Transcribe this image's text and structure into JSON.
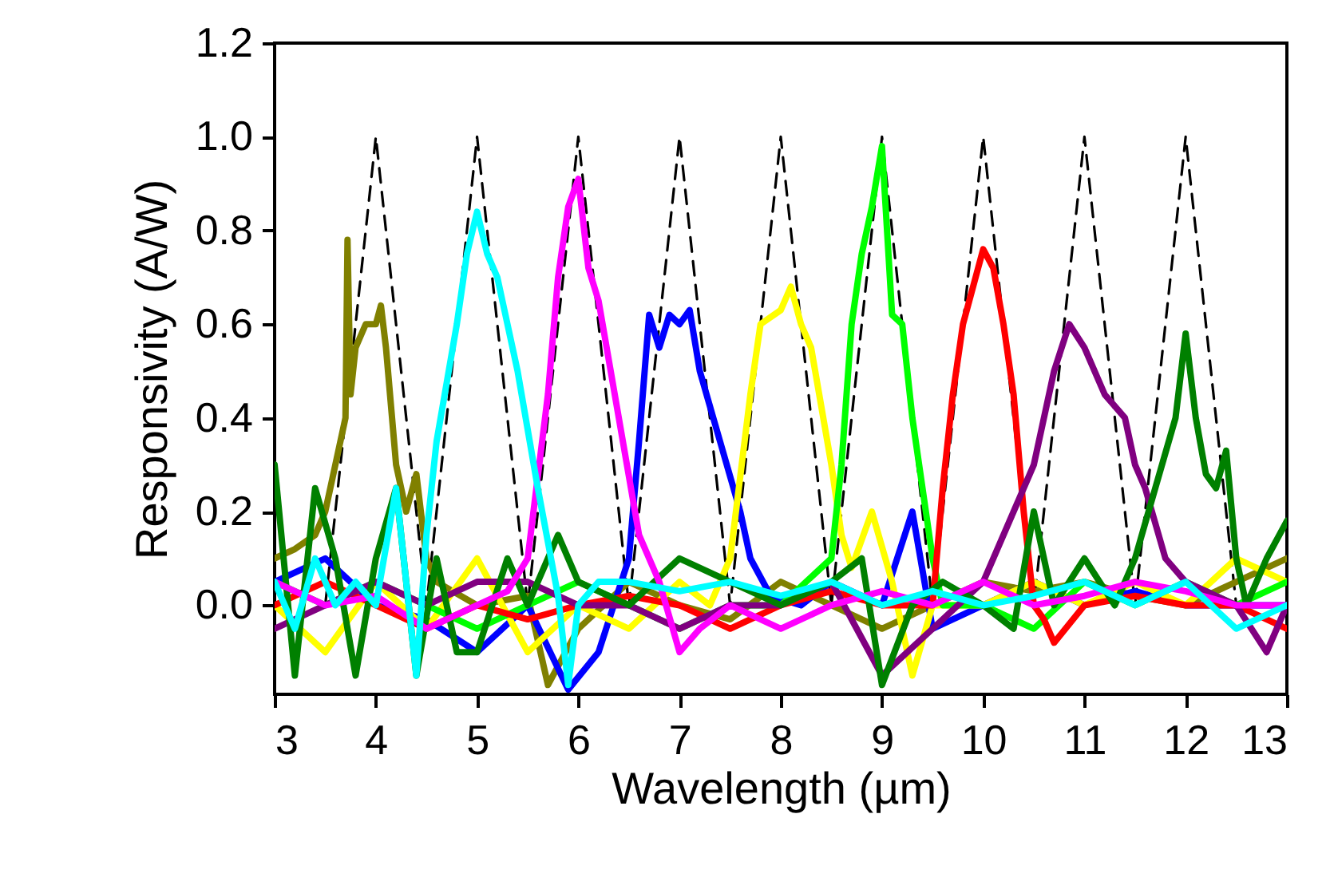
{
  "chart_data": {
    "type": "line",
    "xlabel": "Wavelength (µm)",
    "ylabel": "Responsivity (A/W)",
    "xlim": [
      3,
      13
    ],
    "xticks": [
      3,
      4,
      5,
      6,
      7,
      8,
      9,
      10,
      11,
      12,
      13
    ],
    "ylim": [
      -0.19,
      1.2
    ],
    "yticks": [
      {
        "value": 0,
        "label": "0.0"
      },
      {
        "value": 0.2,
        "label": "0.2"
      },
      {
        "value": 0.4,
        "label": "0.4"
      },
      {
        "value": 0.6,
        "label": "0.6"
      },
      {
        "value": 0.8,
        "label": "0.8"
      },
      {
        "value": 1,
        "label": "1.0"
      },
      {
        "value": 1.2,
        "label": "1.2"
      }
    ],
    "series": [
      {
        "color": "#000000",
        "line_style": "dashed",
        "x": [
          3.5,
          4,
          4.5,
          5,
          5.5,
          6,
          6.5,
          7,
          7.5,
          8,
          8.5,
          9,
          9.5,
          10,
          10.5,
          11,
          11.5,
          12,
          12.5
        ],
        "values": [
          0,
          1,
          0,
          1,
          0,
          1,
          0,
          1,
          0,
          1,
          0,
          1,
          0,
          1,
          0,
          1,
          0,
          1,
          0
        ]
      },
      {
        "color": "#808000",
        "x": [
          3,
          3.2,
          3.4,
          3.5,
          3.6,
          3.7,
          3.72,
          3.75,
          3.8,
          3.9,
          4.0,
          4.05,
          4.1,
          4.2,
          4.3,
          4.4,
          4.5,
          4.6,
          5,
          5.5,
          5.7,
          6,
          6.5,
          7,
          7.5,
          8,
          8.5,
          9,
          9.5,
          10,
          10.5,
          11,
          11.5,
          12,
          12.5,
          13
        ],
        "values": [
          0.1,
          0.12,
          0.15,
          0.2,
          0.3,
          0.4,
          0.78,
          0.45,
          0.55,
          0.6,
          0.6,
          0.64,
          0.55,
          0.3,
          0.2,
          0.28,
          0.1,
          0.05,
          0.0,
          0.02,
          -0.17,
          -0.05,
          0.05,
          0.0,
          -0.03,
          0.05,
          0.0,
          -0.05,
          0.0,
          0.05,
          0.03,
          0.05,
          0.02,
          0.0,
          0.05,
          0.1
        ]
      },
      {
        "color": "#0000ff",
        "x": [
          3,
          3.5,
          4,
          4.5,
          5,
          5.5,
          5.9,
          6.2,
          6.5,
          6.6,
          6.7,
          6.8,
          6.9,
          7.0,
          7.1,
          7.2,
          7.4,
          7.6,
          7.7,
          7.9,
          8.2,
          8.5,
          9,
          9.3,
          9.5,
          10,
          10.5,
          11,
          11.5,
          12,
          12.5,
          13
        ],
        "values": [
          0.05,
          0.1,
          0.0,
          -0.03,
          -0.1,
          0.0,
          -0.18,
          -0.1,
          0.1,
          0.35,
          0.62,
          0.55,
          0.62,
          0.6,
          0.63,
          0.5,
          0.35,
          0.2,
          0.1,
          0.02,
          0.0,
          0.05,
          0.0,
          0.2,
          -0.05,
          0.0,
          0.05,
          0.0,
          0.03,
          0.0,
          0.0,
          0.0
        ]
      },
      {
        "color": "#ffff00",
        "x": [
          3,
          3.5,
          4,
          4.5,
          5,
          5.5,
          6,
          6.5,
          7,
          7.3,
          7.5,
          7.7,
          7.8,
          8.0,
          8.1,
          8.2,
          8.3,
          8.5,
          8.6,
          8.7,
          8.9,
          9.1,
          9.3,
          9.5,
          10,
          10.5,
          11,
          11.5,
          12,
          12.5,
          13
        ],
        "values": [
          0.0,
          -0.1,
          0.05,
          -0.05,
          0.1,
          -0.1,
          0.0,
          -0.05,
          0.05,
          0.0,
          0.1,
          0.45,
          0.6,
          0.63,
          0.68,
          0.6,
          0.55,
          0.3,
          0.15,
          0.08,
          0.2,
          0.05,
          -0.15,
          0.0,
          0.0,
          0.05,
          0.0,
          0.05,
          0.0,
          0.1,
          0.05
        ]
      },
      {
        "color": "#00ff00",
        "x": [
          3,
          3.5,
          4,
          4.5,
          5,
          5.5,
          6,
          6.5,
          7,
          7.5,
          8,
          8.5,
          8.6,
          8.7,
          8.8,
          8.9,
          9,
          9.1,
          9.2,
          9.3,
          9.5,
          9.6,
          10,
          10.5,
          11,
          11.5,
          12,
          12.5,
          13
        ],
        "values": [
          0.05,
          0.0,
          0.05,
          0.0,
          -0.05,
          0.0,
          0.05,
          0.0,
          -0.05,
          0.0,
          0.0,
          0.1,
          0.3,
          0.6,
          0.75,
          0.85,
          0.98,
          0.62,
          0.6,
          0.4,
          0.1,
          0.0,
          0.0,
          -0.05,
          0.05,
          0.0,
          0.05,
          0.0,
          0.05
        ]
      },
      {
        "color": "#ff0000",
        "x": [
          3,
          3.5,
          4,
          4.5,
          5,
          5.5,
          6,
          6.5,
          7,
          7.5,
          8,
          8.5,
          9,
          9.5,
          9.6,
          9.7,
          9.8,
          10,
          10.1,
          10.2,
          10.3,
          10.4,
          10.5,
          10.6,
          10.7,
          11,
          11.5,
          12,
          12.5,
          13
        ],
        "values": [
          0.0,
          0.05,
          0.0,
          -0.05,
          0.0,
          -0.03,
          0.0,
          0.02,
          0.0,
          -0.05,
          0.0,
          0.03,
          0.0,
          0.0,
          0.25,
          0.45,
          0.6,
          0.76,
          0.72,
          0.6,
          0.45,
          0.2,
          0.0,
          -0.03,
          -0.08,
          0.0,
          0.02,
          0.0,
          0.0,
          -0.05
        ]
      },
      {
        "color": "#800080",
        "x": [
          3,
          3.5,
          4,
          4.5,
          5,
          5.5,
          6,
          6.5,
          7,
          7.5,
          8,
          8.5,
          9,
          9.5,
          10,
          10.3,
          10.5,
          10.7,
          10.85,
          11,
          11.2,
          11.4,
          11.5,
          11.6,
          11.8,
          12,
          12.5,
          12.8,
          13
        ],
        "values": [
          -0.05,
          0.0,
          0.05,
          0.0,
          0.05,
          0.05,
          0.0,
          0.0,
          -0.05,
          0.0,
          0.0,
          0.05,
          -0.15,
          -0.05,
          0.05,
          0.2,
          0.3,
          0.5,
          0.6,
          0.55,
          0.45,
          0.4,
          0.3,
          0.25,
          0.1,
          0.05,
          0.0,
          -0.1,
          0.0
        ]
      },
      {
        "color": "#008000",
        "x": [
          3,
          3.2,
          3.4,
          3.6,
          3.8,
          4,
          4.2,
          4.4,
          4.6,
          4.8,
          5,
          5.3,
          5.5,
          5.8,
          6,
          6.5,
          7,
          7.5,
          8,
          8.5,
          8.8,
          9,
          9.3,
          9.6,
          10,
          10.3,
          10.5,
          10.7,
          11,
          11.3,
          11.5,
          11.7,
          11.9,
          12,
          12.1,
          12.2,
          12.3,
          12.4,
          12.5,
          12.6,
          12.8,
          13
        ],
        "values": [
          0.3,
          -0.15,
          0.25,
          0.1,
          -0.15,
          0.1,
          0.25,
          -0.15,
          0.1,
          -0.1,
          -0.1,
          0.1,
          0.0,
          0.15,
          0.05,
          0.0,
          0.1,
          0.05,
          0.0,
          0.05,
          0.1,
          -0.17,
          0.0,
          0.05,
          0.0,
          -0.05,
          0.2,
          0.0,
          0.1,
          0.0,
          0.1,
          0.25,
          0.4,
          0.58,
          0.4,
          0.28,
          0.25,
          0.33,
          0.1,
          0.0,
          0.1,
          0.18
        ]
      },
      {
        "color": "#ff00ff",
        "x": [
          3,
          3.5,
          4,
          4.5,
          5,
          5.3,
          5.5,
          5.7,
          5.8,
          5.9,
          6,
          6.1,
          6.2,
          6.4,
          6.6,
          6.8,
          7,
          7.2,
          7.5,
          8,
          8.5,
          9,
          9.5,
          10,
          10.5,
          11,
          11.5,
          12,
          12.5,
          13
        ],
        "values": [
          0.05,
          0.0,
          0.02,
          -0.05,
          0.0,
          0.03,
          0.1,
          0.45,
          0.7,
          0.85,
          0.91,
          0.72,
          0.65,
          0.4,
          0.15,
          0.05,
          -0.1,
          -0.05,
          0.0,
          -0.05,
          0.0,
          0.03,
          0.0,
          0.05,
          0.0,
          0.02,
          0.05,
          0.03,
          0.0,
          0.0
        ]
      },
      {
        "color": "#00ffff",
        "x": [
          3,
          3.2,
          3.4,
          3.6,
          3.8,
          4,
          4.2,
          4.4,
          4.5,
          4.6,
          4.8,
          4.9,
          5,
          5.1,
          5.2,
          5.4,
          5.6,
          5.8,
          5.9,
          6,
          6.2,
          6.5,
          7,
          7.5,
          8,
          8.5,
          9,
          9.5,
          10,
          10.5,
          11,
          11.5,
          12,
          12.5,
          13
        ],
        "values": [
          0.05,
          -0.05,
          0.1,
          0.0,
          0.05,
          0.0,
          0.25,
          -0.15,
          0.15,
          0.35,
          0.6,
          0.75,
          0.84,
          0.75,
          0.7,
          0.5,
          0.25,
          0.02,
          -0.17,
          0.0,
          0.05,
          0.05,
          0.03,
          0.05,
          0.02,
          0.05,
          0.0,
          0.03,
          0.0,
          0.02,
          0.05,
          0.0,
          0.05,
          -0.05,
          0.0
        ]
      }
    ]
  }
}
